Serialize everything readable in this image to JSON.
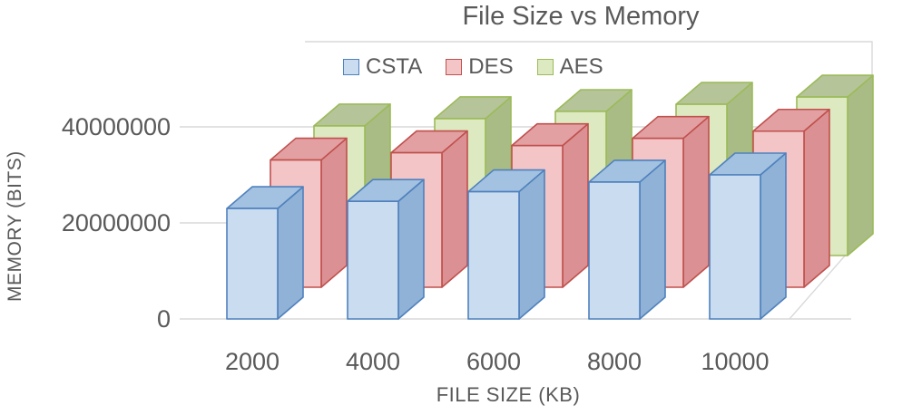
{
  "title": "File Size vs Memory",
  "colors": {
    "text": "#595959",
    "grid": "#d9d9d9",
    "background": "#ffffff"
  },
  "chart_data": {
    "type": "bar",
    "style": "3d-clustered-column",
    "title": "File Size vs Memory",
    "xlabel": "FILE SIZE (KB)",
    "ylabel": "MEMORY (BITS)",
    "categories": [
      2000,
      4000,
      6000,
      8000,
      10000
    ],
    "series": [
      {
        "name": "CSTA",
        "values": [
          23000000,
          24500000,
          26500000,
          28500000,
          30000000
        ],
        "colors": {
          "front": "#c9dcf0",
          "top": "#a3c1e0",
          "side": "#8fb2d6",
          "stroke": "#4f81bd"
        }
      },
      {
        "name": "DES",
        "values": [
          26500000,
          28000000,
          29500000,
          31000000,
          32500000
        ],
        "colors": {
          "front": "#f3c5c7",
          "top": "#e3a0a2",
          "side": "#db9193",
          "stroke": "#c0504d"
        }
      },
      {
        "name": "AES",
        "values": [
          27000000,
          28500000,
          30000000,
          31500000,
          33000000
        ],
        "colors": {
          "front": "#dde9c0",
          "top": "#b6c499",
          "side": "#a9bc85",
          "stroke": "#9bbb59"
        }
      }
    ],
    "ylim": [
      0,
      40000000
    ],
    "y_ticks": [
      "0",
      "20000000",
      "40000000"
    ],
    "grid": true,
    "legend_position": "top"
  }
}
